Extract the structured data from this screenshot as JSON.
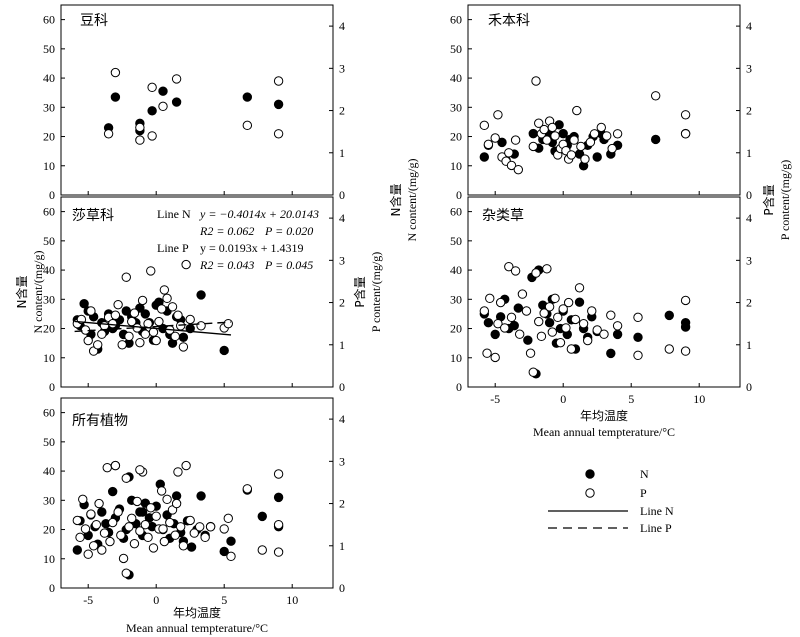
{
  "figure": {
    "left_ylabel_cn": "N含量",
    "left_ylabel_en": "N content/(mg/g)",
    "right_ylabel_cn": "P含量",
    "right_ylabel_en": "P content/(mg/g)",
    "xlabel_cn": "年均温度",
    "xlabel_en": "Mean annual tempterature/°C"
  },
  "legend": {
    "n_label": "N",
    "p_label": "P",
    "line_n_label": "Line N",
    "line_p_label": "Line P"
  },
  "annotation": {
    "line_n_label": "Line N",
    "line_n_eq": "y = −0.4014x + 20.0143",
    "line_n_r2": "R2 = 0.062",
    "line_n_p": "P = 0.020",
    "line_p_label": "Line P",
    "line_p_eq": "y = 0.0193x + 1.4319",
    "line_p_r2": "R2 = 0.043",
    "line_p_p": "P = 0.045"
  },
  "chart_data": [
    {
      "title": "豆科",
      "type": "scatter",
      "xlim": [
        -7,
        13
      ],
      "xticks": [
        -5,
        0,
        5,
        10
      ],
      "left_ylim": [
        0,
        65
      ],
      "left_yticks": [
        0,
        10,
        20,
        30,
        40,
        50,
        60
      ],
      "right_ylim": [
        0,
        4.5
      ],
      "right_yticks": [
        0,
        1,
        2,
        3,
        4
      ],
      "series": [
        {
          "name": "N",
          "axis": "left",
          "marker": "filled",
          "x": [
            -3.5,
            -3.0,
            -1.2,
            -1.2,
            -0.3,
            0.5,
            1.5,
            6.7,
            9.0
          ],
          "y": [
            23,
            33.5,
            22,
            24.5,
            28.8,
            35.5,
            31.8,
            33.5,
            31
          ]
        },
        {
          "name": "P",
          "axis": "right",
          "marker": "open",
          "x": [
            -3.5,
            -3.0,
            -1.2,
            -1.2,
            -0.3,
            -0.3,
            0.5,
            1.5,
            6.7,
            9.0,
            9.0
          ],
          "y": [
            1.45,
            2.9,
            1.3,
            1.6,
            2.55,
            1.4,
            2.1,
            2.75,
            1.65,
            2.7,
            1.45
          ]
        }
      ]
    },
    {
      "title": "禾本科",
      "type": "scatter",
      "xlim": [
        -7,
        13
      ],
      "xticks": [
        -5,
        0,
        5,
        10
      ],
      "left_ylim": [
        0,
        65
      ],
      "left_yticks": [
        0,
        10,
        20,
        30,
        40,
        50,
        60
      ],
      "right_ylim": [
        0,
        4.5
      ],
      "right_yticks": [
        0,
        1,
        2,
        3,
        4
      ],
      "series": [
        {
          "name": "N",
          "axis": "left",
          "marker": "filled",
          "x": [
            -5.8,
            -5.5,
            -4.5,
            -4.2,
            -3.6,
            -2.2,
            -1.8,
            -1.5,
            -1.2,
            -1.0,
            -0.8,
            -0.6,
            -0.3,
            0.0,
            0.3,
            0.5,
            0.8,
            1.2,
            1.5,
            1.8,
            2.2,
            2.5,
            2.8,
            3.0,
            3.5,
            4.0,
            6.8,
            9.0
          ],
          "y": [
            13,
            17,
            18,
            12,
            14,
            21,
            16,
            19,
            20,
            22,
            18,
            15,
            24,
            21,
            17,
            19,
            20,
            14,
            10,
            17,
            20,
            13,
            21,
            19,
            14,
            17,
            19,
            21
          ]
        },
        {
          "name": "P",
          "axis": "right",
          "marker": "open",
          "x": [
            -5.8,
            -5.5,
            -5.0,
            -4.8,
            -4.5,
            -4.2,
            -4.0,
            -3.8,
            -3.5,
            -3.3,
            -2.2,
            -2.0,
            -1.8,
            -1.6,
            -1.4,
            -1.2,
            -1.0,
            -0.8,
            -0.6,
            -0.4,
            -0.2,
            0.0,
            0.2,
            0.4,
            0.6,
            0.8,
            1.0,
            1.3,
            1.6,
            2.0,
            2.3,
            2.8,
            3.2,
            3.6,
            4.0,
            6.8,
            9.0,
            9.0
          ],
          "y": [
            1.65,
            1.2,
            1.35,
            1.9,
            0.9,
            0.8,
            1.0,
            0.7,
            1.3,
            0.6,
            1.15,
            2.7,
            1.7,
            1.45,
            1.55,
            1.3,
            1.75,
            1.6,
            1.4,
            0.95,
            1.1,
            1.2,
            1.05,
            0.85,
            0.95,
            1.3,
            2.0,
            1.15,
            0.85,
            1.25,
            1.45,
            1.6,
            1.4,
            1.1,
            1.45,
            2.35,
            1.9,
            1.45
          ]
        }
      ]
    },
    {
      "title": "莎草科",
      "type": "scatter",
      "xlim": [
        -7,
        13
      ],
      "xticks": [
        -5,
        0,
        5,
        10
      ],
      "left_ylim": [
        0,
        65
      ],
      "left_yticks": [
        0,
        10,
        20,
        30,
        40,
        50,
        60
      ],
      "right_ylim": [
        0,
        4.5
      ],
      "right_yticks": [
        0,
        1,
        2,
        3,
        4
      ],
      "fit_lines": [
        {
          "name": "Line N",
          "axis": "left",
          "slope": -0.4014,
          "intercept": 20.0143,
          "x_range": [
            -6,
            5.5
          ],
          "style": "solid"
        },
        {
          "name": "Line P",
          "axis": "right",
          "slope": 0.0193,
          "intercept": 1.4319,
          "x_range": [
            -6,
            5.5
          ],
          "style": "dashed"
        }
      ],
      "series": [
        {
          "name": "N",
          "axis": "left",
          "marker": "filled",
          "x": [
            -5.8,
            -5.6,
            -5.3,
            -5.0,
            -4.8,
            -4.6,
            -4.3,
            -4.0,
            -3.8,
            -3.5,
            -3.2,
            -3.0,
            -2.7,
            -2.4,
            -2.2,
            -2.0,
            -1.8,
            -1.5,
            -1.2,
            -1.0,
            -0.8,
            -0.5,
            -0.2,
            0.0,
            0.2,
            0.5,
            0.8,
            1.0,
            1.2,
            1.5,
            1.8,
            2.0,
            2.5,
            3.3,
            5.0
          ],
          "y": [
            23,
            21,
            28.5,
            26,
            18,
            24,
            13,
            22,
            19,
            25,
            20,
            21,
            23,
            18,
            26,
            15,
            24,
            22,
            27,
            19,
            25,
            22,
            16,
            28,
            29,
            20,
            26,
            18,
            15,
            24,
            23,
            17,
            20,
            31.5,
            12.5
          ]
        },
        {
          "name": "P",
          "axis": "right",
          "marker": "open",
          "x": [
            -5.8,
            -5.5,
            -5.2,
            -5.0,
            -4.8,
            -4.6,
            -4.3,
            -4.0,
            -3.8,
            -3.5,
            -3.2,
            -3.0,
            -2.8,
            -2.5,
            -2.2,
            -2.0,
            -1.8,
            -1.6,
            -1.4,
            -1.2,
            -1.0,
            -0.8,
            -0.6,
            -0.4,
            -0.2,
            0.0,
            0.2,
            0.4,
            0.6,
            0.8,
            1.0,
            1.2,
            1.4,
            1.6,
            1.8,
            2.0,
            2.2,
            2.5,
            3.3,
            5.0,
            5.3
          ],
          "y": [
            1.5,
            1.6,
            1.35,
            1.1,
            1.8,
            0.85,
            1.0,
            1.25,
            1.45,
            1.65,
            1.5,
            1.7,
            1.95,
            1.0,
            2.6,
            1.2,
            1.55,
            1.75,
            1.4,
            1.05,
            2.05,
            1.25,
            1.5,
            2.75,
            1.3,
            1.1,
            1.55,
            1.85,
            2.3,
            2.1,
            1.35,
            1.9,
            1.2,
            1.7,
            1.45,
            0.95,
            2.9,
            1.6,
            1.45,
            1.4,
            1.5
          ]
        }
      ]
    },
    {
      "title": "杂类草",
      "type": "scatter",
      "xlim": [
        -7,
        13
      ],
      "xticks": [
        -5,
        0,
        5,
        10
      ],
      "left_ylim": [
        0,
        65
      ],
      "left_yticks": [
        0,
        10,
        20,
        30,
        40,
        50,
        60
      ],
      "right_ylim": [
        0,
        4.5
      ],
      "right_yticks": [
        0,
        1,
        2,
        3,
        4
      ],
      "series": [
        {
          "name": "N",
          "axis": "left",
          "marker": "filled",
          "x": [
            -5.8,
            -5.5,
            -5.0,
            -4.6,
            -4.3,
            -4.0,
            -3.6,
            -3.3,
            -2.6,
            -2.3,
            -2.0,
            -1.8,
            -1.5,
            -1.2,
            -1.0,
            -0.8,
            -0.5,
            -0.2,
            0.0,
            0.3,
            0.6,
            0.9,
            1.2,
            1.5,
            1.8,
            2.1,
            2.5,
            3.5,
            4.0,
            5.5,
            7.8,
            9.0,
            9.0
          ],
          "y": [
            25,
            22,
            18,
            24,
            30,
            20,
            21,
            27,
            16,
            37.5,
            4.5,
            40,
            28,
            25,
            22,
            30,
            15,
            20,
            26,
            18,
            23,
            13,
            29,
            20,
            17,
            24,
            19,
            11.5,
            18,
            17,
            24.5,
            22,
            20.5
          ]
        },
        {
          "name": "P",
          "axis": "right",
          "marker": "open",
          "x": [
            -5.8,
            -5.6,
            -5.4,
            -5.0,
            -4.8,
            -4.6,
            -4.3,
            -4.0,
            -3.8,
            -3.5,
            -3.2,
            -3.0,
            -2.7,
            -2.4,
            -2.2,
            -2.0,
            -1.8,
            -1.6,
            -1.4,
            -1.2,
            -1.0,
            -0.8,
            -0.6,
            -0.4,
            -0.2,
            0.0,
            0.2,
            0.4,
            0.6,
            0.9,
            1.2,
            1.5,
            1.8,
            2.1,
            2.5,
            3.0,
            3.5,
            4.0,
            5.5,
            5.5,
            7.8,
            9.0,
            9.0
          ],
          "y": [
            1.8,
            0.8,
            2.1,
            0.7,
            1.5,
            2.0,
            1.4,
            2.85,
            1.65,
            2.75,
            1.25,
            2.2,
            1.8,
            0.8,
            0.35,
            2.7,
            1.55,
            1.2,
            1.75,
            2.8,
            1.9,
            1.3,
            2.1,
            1.65,
            1.05,
            1.85,
            1.4,
            2.0,
            0.9,
            1.6,
            2.35,
            1.5,
            1.1,
            1.8,
            1.35,
            1.25,
            1.7,
            1.45,
            1.65,
            0.75,
            0.9,
            2.05,
            0.85
          ]
        }
      ]
    },
    {
      "title": "所有植物",
      "type": "scatter",
      "xlim": [
        -7,
        13
      ],
      "xticks": [
        -5,
        0,
        5,
        10
      ],
      "left_ylim": [
        0,
        65
      ],
      "left_yticks": [
        0,
        10,
        20,
        30,
        40,
        50,
        60
      ],
      "right_ylim": [
        0,
        4.5
      ],
      "right_yticks": [
        0,
        1,
        2,
        3,
        4
      ],
      "series": [
        {
          "name": "N",
          "axis": "left",
          "marker": "filled",
          "x": [
            -5.8,
            -5.6,
            -5.3,
            -5.0,
            -4.8,
            -4.5,
            -4.3,
            -4.0,
            -3.7,
            -3.5,
            -3.2,
            -3.0,
            -2.7,
            -2.4,
            -2.2,
            -2.0,
            -1.8,
            -1.5,
            -1.2,
            -1.0,
            -0.8,
            -0.5,
            -0.3,
            0.0,
            0.3,
            0.5,
            0.8,
            1.0,
            1.3,
            1.5,
            1.8,
            2.0,
            2.3,
            2.6,
            3.0,
            3.3,
            3.6,
            4.0,
            5.0,
            5.5,
            6.7,
            7.8,
            9.0,
            9.0,
            -2.0,
            -1.0
          ],
          "y": [
            13,
            23,
            28.5,
            18,
            25,
            21,
            15,
            26,
            22,
            19,
            33,
            24,
            27,
            17,
            20,
            38,
            30,
            22,
            26,
            18,
            29,
            24,
            21,
            28,
            35.5,
            20,
            25,
            17,
            22,
            31.5,
            19,
            16,
            23,
            14,
            20,
            31.5,
            18,
            21,
            12.5,
            16,
            33.5,
            24.5,
            31,
            21,
            4.5,
            26
          ]
        },
        {
          "name": "P",
          "axis": "right",
          "marker": "open",
          "x": [
            -5.8,
            -5.6,
            -5.4,
            -5.2,
            -5.0,
            -4.8,
            -4.6,
            -4.4,
            -4.2,
            -4.0,
            -3.8,
            -3.6,
            -3.4,
            -3.2,
            -3.0,
            -2.8,
            -2.6,
            -2.4,
            -2.2,
            -2.0,
            -1.8,
            -1.6,
            -1.4,
            -1.2,
            -1.0,
            -0.8,
            -0.6,
            -0.4,
            -0.2,
            0.0,
            0.2,
            0.4,
            0.6,
            0.8,
            1.0,
            1.2,
            1.4,
            1.6,
            1.8,
            2.0,
            2.2,
            2.5,
            2.8,
            3.2,
            3.6,
            4.0,
            5.0,
            5.3,
            5.5,
            6.7,
            7.8,
            9.0,
            9.0,
            9.0,
            -3.0,
            -2.2,
            -1.2,
            0.5,
            1.5
          ],
          "y": [
            1.6,
            1.2,
            2.1,
            1.4,
            0.8,
            1.75,
            1.0,
            1.5,
            2.0,
            0.9,
            1.3,
            2.85,
            1.1,
            1.55,
            2.9,
            1.8,
            1.25,
            0.7,
            2.6,
            1.45,
            1.65,
            1.05,
            2.05,
            1.35,
            2.75,
            1.5,
            1.2,
            1.9,
            0.95,
            1.7,
            1.4,
            2.3,
            1.1,
            2.1,
            1.55,
            1.85,
            1.25,
            2.75,
            1.45,
            1.0,
            2.9,
            1.6,
            1.3,
            1.45,
            1.2,
            1.45,
            1.4,
            1.65,
            0.75,
            2.35,
            0.9,
            2.7,
            1.5,
            0.85,
            2.9,
            0.35,
            2.8,
            1.4,
            2.0
          ]
        }
      ]
    }
  ]
}
